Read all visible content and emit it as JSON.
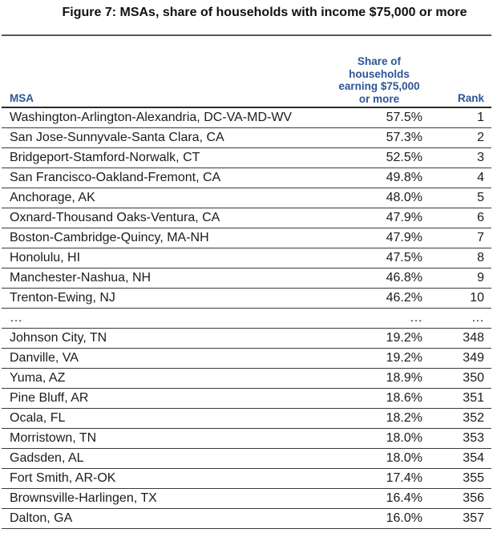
{
  "title": "Figure 7: MSAs, share of households with income $75,000 or more",
  "colors": {
    "header_blue": "#2d5596",
    "title_black": "#111111",
    "rule_dark": "#3a3a3a"
  },
  "table": {
    "columns": {
      "msa": "MSA",
      "share": "Share of\nhouseholds\nearning $75,000\nor more",
      "rank": "Rank"
    },
    "rows": [
      {
        "msa": "Washington-Arlington-Alexandria, DC-VA-MD-WV",
        "share": "57.5%",
        "rank": "1"
      },
      {
        "msa": "San Jose-Sunnyvale-Santa Clara, CA",
        "share": "57.3%",
        "rank": "2"
      },
      {
        "msa": "Bridgeport-Stamford-Norwalk, CT",
        "share": "52.5%",
        "rank": "3"
      },
      {
        "msa": "San Francisco-Oakland-Fremont, CA",
        "share": "49.8%",
        "rank": "4"
      },
      {
        "msa": "Anchorage, AK",
        "share": "48.0%",
        "rank": "5"
      },
      {
        "msa": "Oxnard-Thousand Oaks-Ventura, CA",
        "share": "47.9%",
        "rank": "6"
      },
      {
        "msa": "Boston-Cambridge-Quincy, MA-NH",
        "share": "47.9%",
        "rank": "7"
      },
      {
        "msa": "Honolulu, HI",
        "share": "47.5%",
        "rank": "8"
      },
      {
        "msa": "Manchester-Nashua, NH",
        "share": "46.8%",
        "rank": "9"
      },
      {
        "msa": "Trenton-Ewing, NJ",
        "share": "46.2%",
        "rank": "10"
      },
      {
        "msa": "…",
        "share": "…",
        "rank": "…"
      },
      {
        "msa": "Johnson City, TN",
        "share": "19.2%",
        "rank": "348"
      },
      {
        "msa": "Danville, VA",
        "share": "19.2%",
        "rank": "349"
      },
      {
        "msa": "Yuma, AZ",
        "share": "18.9%",
        "rank": "350"
      },
      {
        "msa": "Pine Bluff, AR",
        "share": "18.6%",
        "rank": "351"
      },
      {
        "msa": "Ocala, FL",
        "share": "18.2%",
        "rank": "352"
      },
      {
        "msa": "Morristown, TN",
        "share": "18.0%",
        "rank": "353"
      },
      {
        "msa": "Gadsden, AL",
        "share": "18.0%",
        "rank": "354"
      },
      {
        "msa": "Fort Smith, AR-OK",
        "share": "17.4%",
        "rank": "355"
      },
      {
        "msa": "Brownsville-Harlingen, TX",
        "share": "16.4%",
        "rank": "356"
      },
      {
        "msa": "Dalton, GA",
        "share": "16.0%",
        "rank": "357"
      }
    ]
  }
}
